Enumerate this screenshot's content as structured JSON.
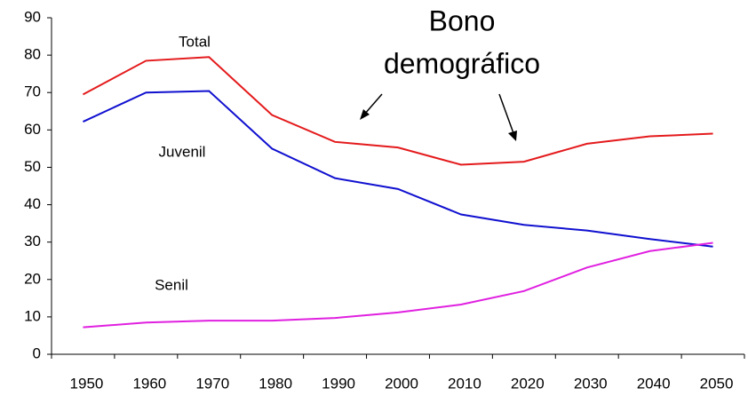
{
  "chart_data": {
    "type": "line",
    "categories": [
      "1950",
      "1960",
      "1970",
      "1980",
      "1990",
      "2000",
      "2010",
      "2020",
      "2030",
      "2040",
      "2050"
    ],
    "series": [
      {
        "name": "Total",
        "color": "#e41a1c",
        "values": [
          69.5,
          78.5,
          79.5,
          64,
          56.8,
          55.3,
          50.7,
          51.5,
          56.3,
          58.3,
          59
        ]
      },
      {
        "name": "Juvenil",
        "color": "#1010d0",
        "values": [
          62.2,
          70,
          70.4,
          55,
          47.1,
          44.2,
          37.4,
          34.6,
          33.1,
          30.8,
          28.8
        ]
      },
      {
        "name": "Senil",
        "color": "#e020e0",
        "values": [
          7.2,
          8.5,
          9,
          9,
          9.7,
          11.2,
          13.3,
          16.9,
          23.2,
          27.6,
          29.8
        ]
      }
    ],
    "annotations": [
      "Bono",
      "demográfico"
    ],
    "ylim": [
      0,
      90
    ],
    "yticks": [
      0,
      10,
      20,
      30,
      40,
      50,
      60,
      70,
      80,
      90
    ],
    "grid": false
  }
}
